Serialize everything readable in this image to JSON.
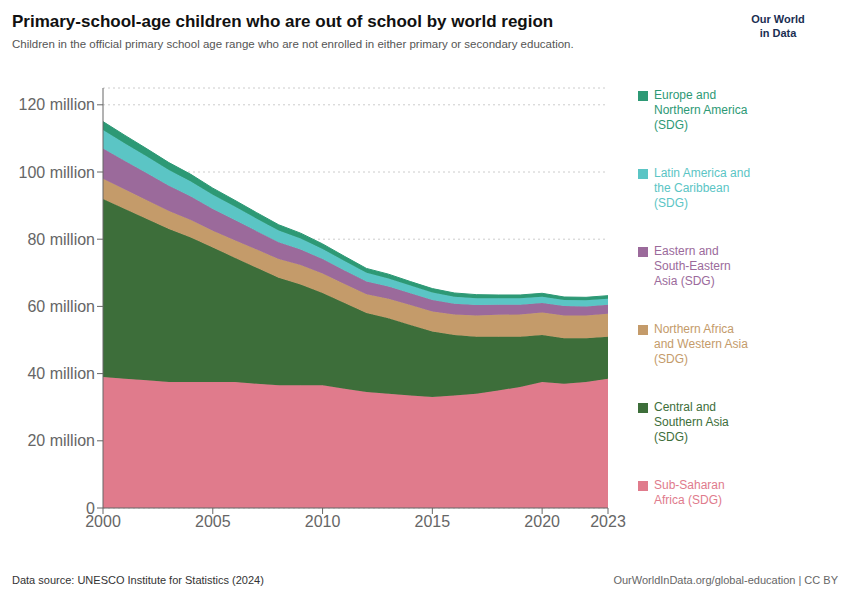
{
  "chart_data": {
    "type": "area",
    "title": "Primary-school-age children who are out of school by world region",
    "subtitle": "Children in the official primary school age range who are not enrolled in either primary or secondary education.",
    "annotations": [
      "Data source: UNESCO Institute for Statistics (2024)",
      "OurWorldInData.org/global-education | CC BY",
      "Our World",
      "in Data"
    ],
    "x": [
      2000,
      2001,
      2002,
      2003,
      2004,
      2005,
      2006,
      2007,
      2008,
      2009,
      2010,
      2011,
      2012,
      2013,
      2014,
      2015,
      2016,
      2017,
      2018,
      2019,
      2020,
      2021,
      2022,
      2023
    ],
    "series": [
      {
        "name": "Sub-Saharan\nAfrica (SDG)",
        "color": "#e07b8c",
        "values": [
          39.0,
          38.5,
          38.0,
          37.5,
          37.5,
          37.5,
          37.5,
          37.0,
          36.5,
          36.5,
          36.5,
          35.5,
          34.5,
          34.0,
          33.5,
          33.0,
          33.5,
          34.0,
          35.0,
          36.0,
          37.5,
          37.0,
          37.5,
          38.5
        ]
      },
      {
        "name": "Central and\nSouthern Asia\n(SDG)",
        "color": "#3d6e3a",
        "values": [
          53.0,
          50.5,
          48.0,
          45.5,
          43.0,
          40.0,
          37.0,
          34.5,
          32.0,
          30.0,
          27.5,
          25.5,
          23.5,
          22.5,
          21.0,
          19.5,
          18.0,
          17.0,
          16.0,
          15.0,
          14.0,
          13.5,
          13.0,
          12.5
        ]
      },
      {
        "name": "Northern Africa\nand Western Asia\n(SDG)",
        "color": "#c49b6a",
        "values": [
          6.0,
          5.8,
          5.6,
          5.4,
          5.2,
          5.0,
          5.2,
          5.4,
          5.6,
          5.8,
          5.8,
          5.7,
          5.6,
          5.8,
          5.9,
          6.0,
          6.1,
          6.3,
          6.5,
          6.6,
          6.7,
          6.8,
          6.8,
          6.8
        ]
      },
      {
        "name": "Eastern and\nSouth-Eastern\nAsia (SDG)",
        "color": "#9b6a9b",
        "values": [
          9.0,
          8.5,
          8.0,
          7.5,
          7.0,
          6.5,
          6.0,
          5.5,
          5.0,
          4.6,
          4.3,
          4.0,
          3.8,
          3.6,
          3.5,
          3.4,
          3.2,
          3.1,
          3.0,
          2.9,
          2.8,
          2.8,
          2.7,
          2.7
        ]
      },
      {
        "name": "Latin America and\nthe Caribbean\n(SDG)",
        "color": "#5bc5c5",
        "values": [
          5.5,
          5.2,
          5.0,
          4.7,
          4.5,
          4.2,
          4.0,
          3.7,
          3.5,
          3.3,
          3.0,
          2.8,
          2.6,
          2.4,
          2.3,
          2.2,
          2.1,
          2.0,
          1.9,
          1.9,
          1.9,
          1.8,
          1.8,
          1.8
        ]
      },
      {
        "name": "Europe and\nNorthern America\n(SDG)",
        "color": "#2d9975",
        "values": [
          2.5,
          2.4,
          2.3,
          2.2,
          2.1,
          2.0,
          1.9,
          1.8,
          1.7,
          1.6,
          1.5,
          1.4,
          1.3,
          1.3,
          1.2,
          1.2,
          1.1,
          1.1,
          1.0,
          1.0,
          1.0,
          0.9,
          0.9,
          0.9
        ]
      }
    ],
    "xlim": [
      2000,
      2023
    ],
    "xticks": [
      2000,
      2005,
      2010,
      2015,
      2020,
      2023
    ],
    "ylim": [
      0,
      125
    ],
    "yticks": [
      0,
      {
        "value": 20,
        "label": "20 million"
      },
      {
        "value": 40,
        "label": "40 million"
      },
      {
        "value": 60,
        "label": "60 million"
      },
      {
        "value": 80,
        "label": "80 million"
      },
      {
        "value": 100,
        "label": "100 million"
      },
      {
        "value": 120,
        "label": "120 million"
      }
    ],
    "stacked": true,
    "grid": true
  }
}
